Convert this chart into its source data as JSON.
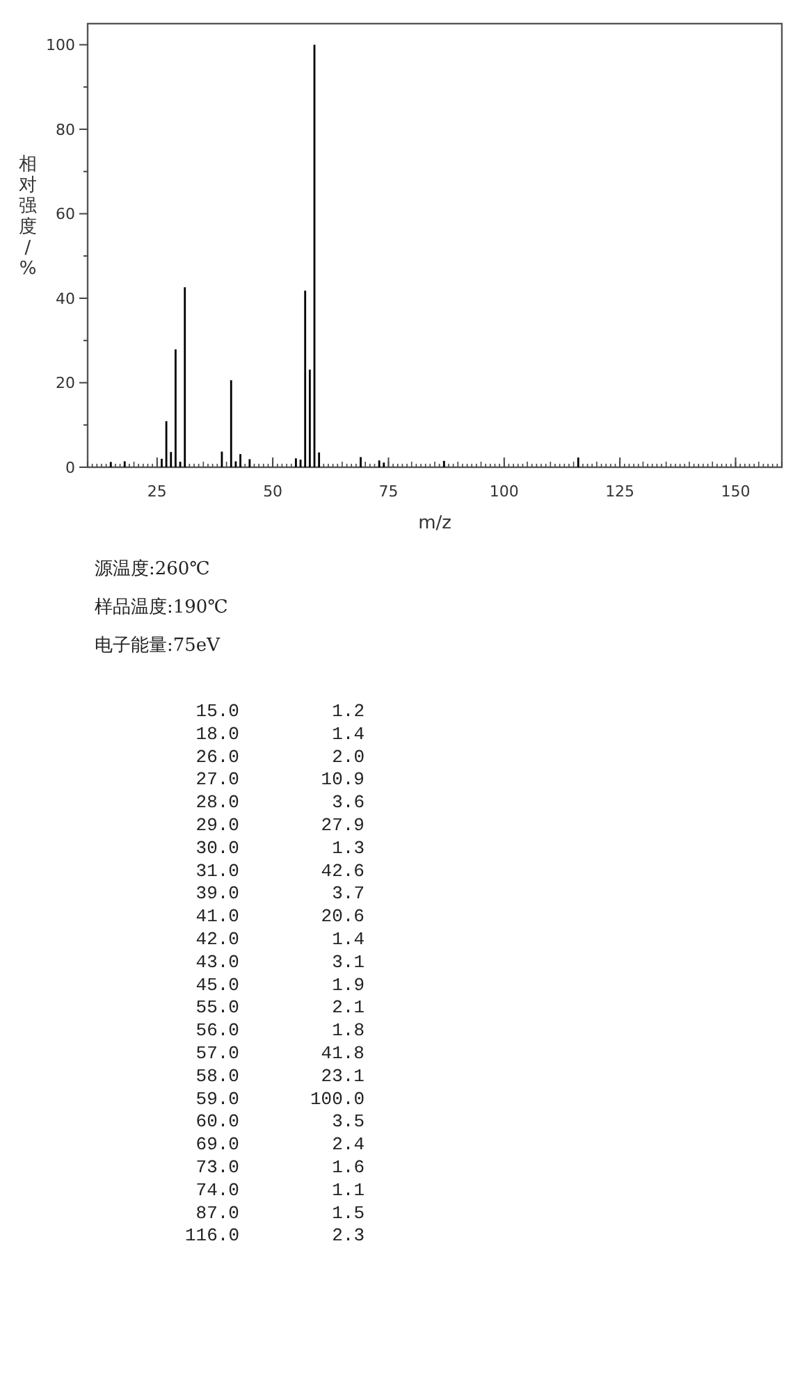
{
  "chart_data": [
    {
      "type": "bar",
      "xlabel": "m/z",
      "ylabel": "相对强度/%",
      "x": [
        15,
        18,
        26,
        27,
        28,
        29,
        30,
        31,
        39,
        41,
        42,
        43,
        45,
        55,
        56,
        57,
        58,
        59,
        60,
        69,
        73,
        74,
        87,
        116
      ],
      "values": [
        1.2,
        1.4,
        2.0,
        10.9,
        3.6,
        27.9,
        1.3,
        42.6,
        3.7,
        20.6,
        1.4,
        3.1,
        1.9,
        2.1,
        1.8,
        41.8,
        23.1,
        100.0,
        3.5,
        2.4,
        1.6,
        1.1,
        1.5,
        2.3
      ],
      "color": "#000000",
      "xlim": [
        10,
        160
      ],
      "xticks": [
        25,
        50,
        75,
        100,
        125,
        150
      ],
      "ylim": [
        0,
        105
      ],
      "yticks": [
        0,
        20,
        40,
        60,
        80,
        100
      ],
      "annotations": [
        "源温度:260℃",
        "样品温度:190℃",
        "电子能量:75eV"
      ]
    },
    {
      "type": "other",
      "categories": [
        "15.0",
        "18.0",
        "26.0",
        "27.0",
        "28.0",
        "29.0",
        "30.0",
        "31.0",
        "39.0",
        "41.0",
        "42.0",
        "43.0",
        "45.0",
        "55.0",
        "56.0",
        "57.0",
        "58.0",
        "59.0",
        "60.0",
        "69.0",
        "73.0",
        "74.0",
        "87.0",
        "116.0"
      ],
      "value_labels": [
        "1.2",
        "1.4",
        "2.0",
        "10.9",
        "3.6",
        "27.9",
        "1.3",
        "42.6",
        "3.7",
        "20.6",
        "1.4",
        "3.1",
        "1.9",
        "2.1",
        "1.8",
        "41.8",
        "23.1",
        "100.0",
        "3.5",
        "2.4",
        "1.6",
        "1.1",
        "1.5",
        "2.3"
      ]
    }
  ]
}
